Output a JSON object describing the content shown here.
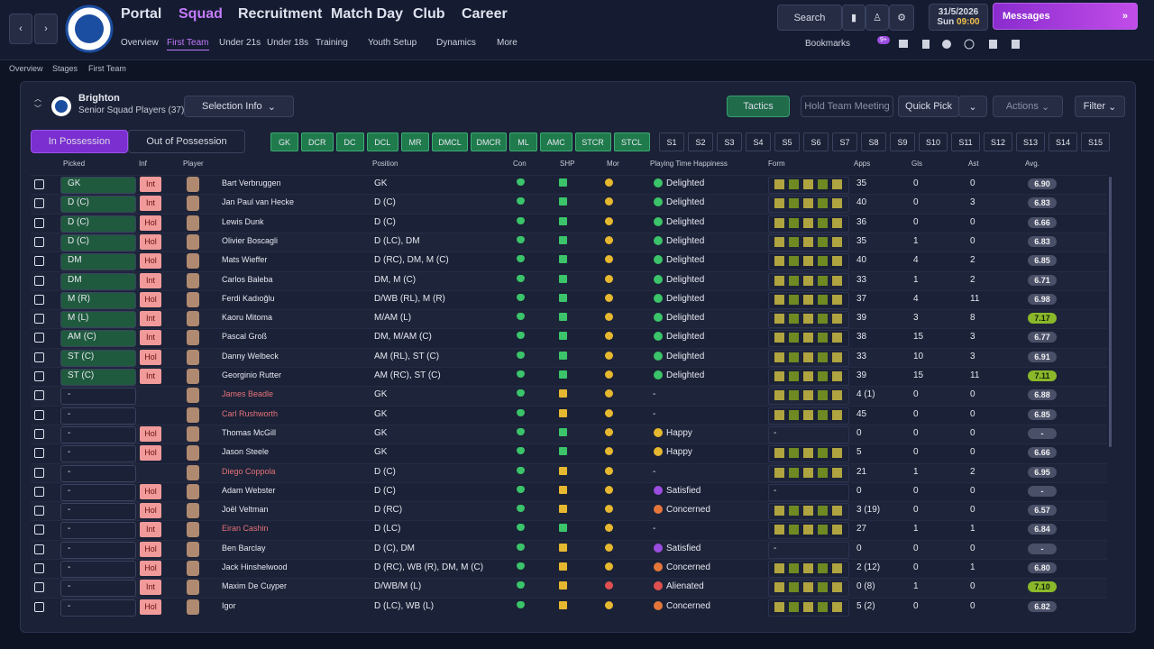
{
  "nav": {
    "menu": [
      "Portal",
      "Squad",
      "Recruitment",
      "Match Day",
      "Club",
      "Career"
    ],
    "submenu": [
      "Overview",
      "First Team",
      "Under 21s",
      "Under 18s",
      "Training",
      "Youth Setup",
      "Dynamics",
      "More"
    ],
    "search": "Search",
    "date": "31/5/2026",
    "day": "Sun",
    "time": "09:00",
    "messages": "Messages",
    "bookmarks": "Bookmarks",
    "badge": "9+"
  },
  "breadcrumb": [
    "Overview",
    "Stages",
    "First Team"
  ],
  "team": {
    "name": "Brighton",
    "subtitle": "Senior Squad Players (37)"
  },
  "buttons": {
    "selection_info": "Selection Info",
    "tactics": "Tactics",
    "meeting": "Hold Team Meeting",
    "quick_pick": "Quick Pick",
    "actions": "Actions",
    "filter": "Filter"
  },
  "tabs": [
    "In Possession",
    "Out of Possession"
  ],
  "positions": [
    "GK",
    "DCR",
    "DC",
    "DCL",
    "MR",
    "DMCL",
    "DMCR",
    "ML",
    "AMC",
    "STCR",
    "STCL"
  ],
  "subs": [
    "S1",
    "S2",
    "S3",
    "S4",
    "S5",
    "S6",
    "S7",
    "S8",
    "S9",
    "S10",
    "S11",
    "S12",
    "S13",
    "S14",
    "S15"
  ],
  "table": {
    "columns": [
      "Picked",
      "Inf",
      "Player",
      "Position",
      "Con",
      "SHP",
      "Mor",
      "Playing Time Happiness",
      "Form",
      "Apps",
      "Gls",
      "Ast",
      "Avg."
    ],
    "rows": [
      {
        "picked": "GK",
        "inf": "Int",
        "name": "Bart Verbruggen",
        "position": "GK",
        "happiness": "Delighted",
        "apps": "35",
        "gls": "0",
        "ast": "0",
        "avg": "6.90"
      },
      {
        "picked": "D (C)",
        "inf": "Int",
        "name": "Jan Paul van Hecke",
        "position": "D (C)",
        "happiness": "Delighted",
        "apps": "40",
        "gls": "0",
        "ast": "3",
        "avg": "6.83"
      },
      {
        "picked": "D (C)",
        "inf": "Hol",
        "name": "Lewis Dunk",
        "position": "D (C)",
        "happiness": "Delighted",
        "apps": "36",
        "gls": "0",
        "ast": "0",
        "avg": "6.66"
      },
      {
        "picked": "D (C)",
        "inf": "Hol",
        "name": "Olivier Boscagli",
        "position": "D (LC), DM",
        "happiness": "Delighted",
        "apps": "35",
        "gls": "1",
        "ast": "0",
        "avg": "6.83"
      },
      {
        "picked": "DM",
        "inf": "Hol",
        "name": "Mats Wieffer",
        "position": "D (RC), DM, M (C)",
        "happiness": "Delighted",
        "apps": "40",
        "gls": "4",
        "ast": "2",
        "avg": "6.85"
      },
      {
        "picked": "DM",
        "inf": "Int",
        "name": "Carlos Baleba",
        "position": "DM, M (C)",
        "happiness": "Delighted",
        "apps": "33",
        "gls": "1",
        "ast": "2",
        "avg": "6.71"
      },
      {
        "picked": "M (R)",
        "inf": "Hol",
        "name": "Ferdi Kadıoğlu",
        "position": "D/WB (RL), M (R)",
        "happiness": "Delighted",
        "apps": "37",
        "gls": "4",
        "ast": "11",
        "avg": "6.98"
      },
      {
        "picked": "M (L)",
        "inf": "Int",
        "name": "Kaoru Mitoma",
        "position": "M/AM (L)",
        "happiness": "Delighted",
        "apps": "39",
        "gls": "3",
        "ast": "8",
        "avg": "7.17"
      },
      {
        "picked": "AM (C)",
        "inf": "Int",
        "name": "Pascal Groß",
        "position": "DM, M/AM (C)",
        "happiness": "Delighted",
        "apps": "38",
        "gls": "15",
        "ast": "3",
        "avg": "6.77"
      },
      {
        "picked": "ST (C)",
        "inf": "Hol",
        "name": "Danny Welbeck",
        "position": "AM (RL), ST (C)",
        "happiness": "Delighted",
        "apps": "33",
        "gls": "10",
        "ast": "3",
        "avg": "6.91"
      },
      {
        "picked": "ST (C)",
        "inf": "Int",
        "name": "Georginio Rutter",
        "position": "AM (RC), ST (C)",
        "happiness": "Delighted",
        "apps": "39",
        "gls": "15",
        "ast": "11",
        "avg": "7.11"
      },
      {
        "picked": "-",
        "name": "James Beadle",
        "name_color": "#e4727a",
        "position": "GK",
        "happiness": "-",
        "apps": "4 (1)",
        "gls": "0",
        "ast": "0",
        "avg": "6.88"
      },
      {
        "picked": "-",
        "name": "Carl Rushworth",
        "name_color": "#e4727a",
        "position": "GK",
        "happiness": "-",
        "apps": "45",
        "gls": "0",
        "ast": "0",
        "avg": "6.85"
      },
      {
        "picked": "-",
        "inf": "Hol",
        "name": "Thomas McGill",
        "position": "GK",
        "happiness": "Happy",
        "form": "-",
        "apps": "0",
        "gls": "0",
        "ast": "0",
        "avg": "-"
      },
      {
        "picked": "-",
        "inf": "Hol",
        "name": "Jason Steele",
        "position": "GK",
        "happiness": "Happy",
        "apps": "5",
        "gls": "0",
        "ast": "0",
        "avg": "6.66"
      },
      {
        "picked": "-",
        "name": "Diego Coppola",
        "name_color": "#e4727a",
        "position": "D (C)",
        "happiness": "-",
        "apps": "21",
        "gls": "1",
        "ast": "2",
        "avg": "6.95"
      },
      {
        "picked": "-",
        "inf": "Hol",
        "name": "Adam Webster",
        "position": "D (C)",
        "happiness": "Satisfied",
        "form": "-",
        "apps": "0",
        "gls": "0",
        "ast": "0",
        "avg": "-"
      },
      {
        "picked": "-",
        "inf": "Hol",
        "name": "Joël Veltman",
        "position": "D (RC)",
        "happiness": "Concerned",
        "apps": "3 (19)",
        "gls": "0",
        "ast": "0",
        "avg": "6.57"
      },
      {
        "picked": "-",
        "inf": "Int",
        "name": "Eiran Cashin",
        "name_color": "#e4727a",
        "position": "D (LC)",
        "happiness": "-",
        "apps": "27",
        "gls": "1",
        "ast": "1",
        "avg": "6.84"
      },
      {
        "picked": "-",
        "inf": "Hol",
        "name": "Ben Barclay",
        "position": "D (C), DM",
        "happiness": "Satisfied",
        "form": "-",
        "apps": "0",
        "gls": "0",
        "ast": "0",
        "avg": "-"
      },
      {
        "picked": "-",
        "inf": "Hol",
        "name": "Jack Hinshelwood",
        "position": "D (RC), WB (R), DM, M (C)",
        "happiness": "Concerned",
        "apps": "2 (12)",
        "gls": "0",
        "ast": "1",
        "avg": "6.80"
      },
      {
        "picked": "-",
        "inf": "Int",
        "name": "Maxim De Cuyper",
        "position": "D/WB/M (L)",
        "happiness": "Alienated",
        "apps": "0 (8)",
        "gls": "1",
        "ast": "0",
        "avg": "7.10"
      },
      {
        "picked": "-",
        "inf": "Hol",
        "name": "Igor",
        "position": "D (LC), WB (L)",
        "happiness": "Concerned",
        "apps": "5 (2)",
        "gls": "0",
        "ast": "0",
        "avg": "6.82"
      }
    ]
  }
}
